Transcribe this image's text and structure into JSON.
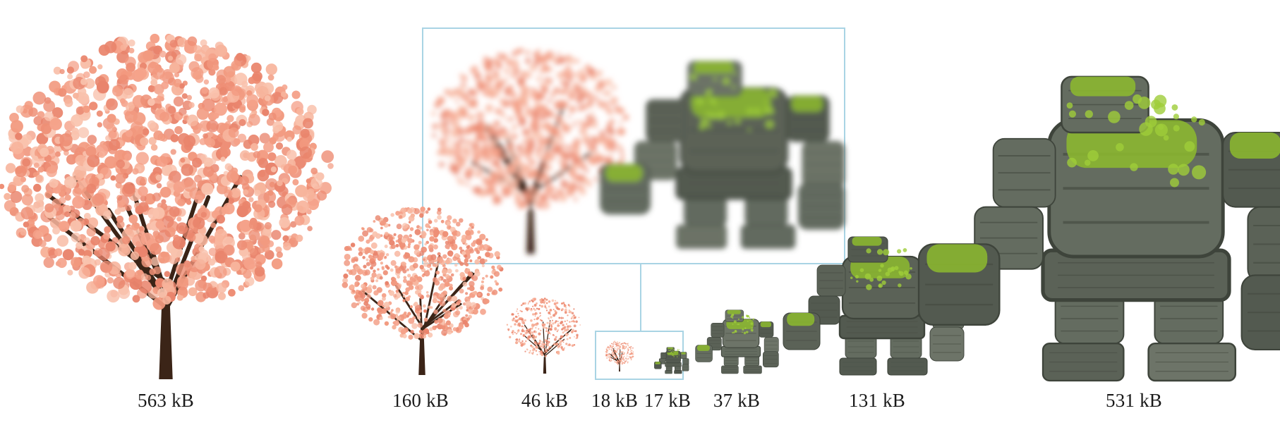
{
  "figure": {
    "accent_color": "#a9d4e4",
    "tree_leaf_color": "#f29a80",
    "tree_trunk_color": "#3b2417",
    "golem_stone_color": "#5d6558",
    "golem_moss_color": "#8dbb2e",
    "items": [
      {
        "subject": "cherry-tree",
        "label": "563 kB"
      },
      {
        "subject": "cherry-tree",
        "label": "160 kB"
      },
      {
        "subject": "cherry-tree",
        "label": "46 kB"
      },
      {
        "subject": "cherry-tree",
        "label": "18 kB"
      },
      {
        "subject": "stone-golem",
        "label": "17 kB"
      },
      {
        "subject": "stone-golem",
        "label": "37 kB"
      },
      {
        "subject": "stone-golem",
        "label": "131 kB"
      },
      {
        "subject": "stone-golem",
        "label": "531 kB"
      }
    ],
    "inset": {
      "subjects": [
        "cherry-tree",
        "stone-golem"
      ],
      "zoom_of": [
        "18 kB",
        "17 kB"
      ]
    }
  }
}
